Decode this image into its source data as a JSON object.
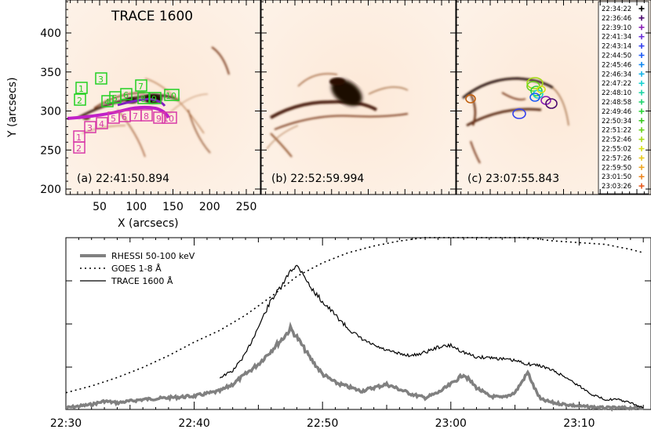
{
  "panels": [
    {
      "title": "TRACE 1600",
      "label": "(a) 22:41:50.894"
    },
    {
      "title": "",
      "label": "(b) 22:52:59.994"
    },
    {
      "title": "",
      "label": "(c) 23:07:55.843"
    }
  ],
  "top_axes": {
    "ylabel": "Y (arcsecs)",
    "xlabel": "X (arcsecs)",
    "yticks": [
      "200",
      "250",
      "300",
      "350",
      "400"
    ],
    "xticks": [
      "50",
      "100",
      "150",
      "200",
      "250"
    ]
  },
  "box_labels": [
    "1",
    "2",
    "3",
    "4",
    "5",
    "6",
    "7",
    "8",
    "9",
    "10"
  ],
  "legend_times": [
    {
      "t": "22:34:22",
      "c": "#000000"
    },
    {
      "t": "22:36:46",
      "c": "#4b0a6e"
    },
    {
      "t": "22:39:10",
      "c": "#8a1fb5"
    },
    {
      "t": "22:41:34",
      "c": "#6a2fd8"
    },
    {
      "t": "22:43:14",
      "c": "#3340ee"
    },
    {
      "t": "22:44:50",
      "c": "#1f5cf5"
    },
    {
      "t": "22:45:46",
      "c": "#1288f0"
    },
    {
      "t": "22:46:34",
      "c": "#18b4e8"
    },
    {
      "t": "22:47:22",
      "c": "#19d2d2"
    },
    {
      "t": "22:48:10",
      "c": "#1fd6a6"
    },
    {
      "t": "22:48:58",
      "c": "#21d46e"
    },
    {
      "t": "22:49:46",
      "c": "#2ad437"
    },
    {
      "t": "22:50:34",
      "c": "#38c81f"
    },
    {
      "t": "22:51:22",
      "c": "#69d41c"
    },
    {
      "t": "22:52:46",
      "c": "#a7dc18"
    },
    {
      "t": "22:55:02",
      "c": "#d8e01a"
    },
    {
      "t": "22:57:26",
      "c": "#e8c820"
    },
    {
      "t": "22:59:50",
      "c": "#eea624"
    },
    {
      "t": "23:01:50",
      "c": "#ec8722"
    },
    {
      "t": "23:03:26",
      "c": "#e65a1e"
    }
  ],
  "chart_data": {
    "type": "line",
    "xticks": [
      "22:30",
      "22:40",
      "22:50",
      "23:00",
      "23:10"
    ],
    "xlim_minutes_from_2230": [
      0,
      45.6
    ],
    "series": [
      {
        "name": "RHESSI 50-100 keV",
        "style": "thick gray solid",
        "color": "#808080",
        "x": [
          "22:30",
          "22:32",
          "22:33",
          "22:34",
          "22:36",
          "22:38",
          "22:40",
          "22:42",
          "22:43",
          "22:44",
          "22:45",
          "22:46",
          "22:47",
          "22:47.5",
          "22:48",
          "22:49",
          "22:50",
          "22:51",
          "22:53",
          "22:55",
          "22:57",
          "22:58",
          "22:59",
          "23:00",
          "23:01",
          "23:02",
          "23:03",
          "23:04",
          "23:05",
          "23:05.5",
          "23:06",
          "23:06.5",
          "23:07",
          "23:08",
          "23:09",
          "23:10",
          "23:12",
          "23:15"
        ],
        "y": [
          0.0,
          0.02,
          0.04,
          0.03,
          0.05,
          0.06,
          0.07,
          0.1,
          0.14,
          0.2,
          0.26,
          0.34,
          0.42,
          0.47,
          0.42,
          0.3,
          0.2,
          0.15,
          0.1,
          0.14,
          0.08,
          0.06,
          0.09,
          0.14,
          0.2,
          0.12,
          0.07,
          0.06,
          0.09,
          0.15,
          0.21,
          0.12,
          0.05,
          0.03,
          0.02,
          0.01,
          0.0,
          0.0
        ]
      },
      {
        "name": "GOES 1-8 Å",
        "style": "dotted",
        "color": "#000000",
        "x": [
          "22:30",
          "22:32",
          "22:34",
          "22:36",
          "22:38",
          "22:40",
          "22:42",
          "22:44",
          "22:46",
          "22:48",
          "22:50",
          "22:52",
          "22:54",
          "22:56",
          "22:58",
          "23:00",
          "23:02",
          "23:04",
          "23:06",
          "23:08",
          "23:10",
          "23:12",
          "23:14",
          "23:15"
        ],
        "y": [
          0.09,
          0.13,
          0.18,
          0.24,
          0.31,
          0.39,
          0.46,
          0.55,
          0.66,
          0.78,
          0.86,
          0.92,
          0.96,
          0.99,
          1.01,
          1.01,
          1.01,
          1.01,
          1.01,
          0.99,
          0.98,
          0.97,
          0.94,
          0.92
        ]
      },
      {
        "name": "TRACE 1600 Å",
        "style": "solid",
        "color": "#000000",
        "x": [
          "22:42",
          "22:43",
          "22:44",
          "22:45",
          "22:46",
          "22:47",
          "22:47.5",
          "22:48",
          "22:48.5",
          "22:49",
          "22:50",
          "22:51",
          "22:52",
          "22:53",
          "22:54",
          "22:55",
          "22:56",
          "22:57",
          "22:58",
          "22:59",
          "23:00",
          "23:01",
          "23:02",
          "23:03",
          "23:04",
          "23:05",
          "23:06",
          "23:07",
          "23:08",
          "23:09",
          "23:10",
          "23:11",
          "23:12",
          "23:13",
          "23:14",
          "23:15"
        ],
        "y": [
          0.18,
          0.22,
          0.32,
          0.48,
          0.64,
          0.74,
          0.82,
          0.84,
          0.8,
          0.72,
          0.63,
          0.55,
          0.47,
          0.41,
          0.37,
          0.34,
          0.32,
          0.31,
          0.33,
          0.36,
          0.37,
          0.33,
          0.3,
          0.3,
          0.29,
          0.28,
          0.26,
          0.25,
          0.22,
          0.18,
          0.13,
          0.08,
          0.05,
          0.05,
          0.03,
          0.0
        ]
      }
    ]
  }
}
